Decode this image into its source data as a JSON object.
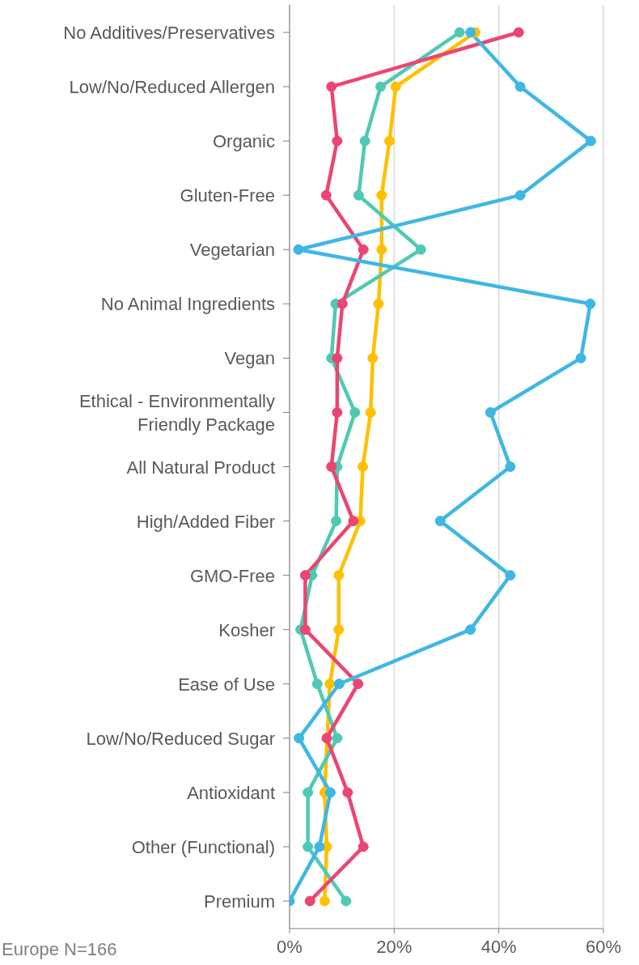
{
  "chart_data": {
    "type": "line",
    "orientation": "horizontal",
    "categories": [
      "No Additives/Preservatives",
      "Low/No/Reduced Allergen",
      "Organic",
      "Gluten-Free",
      "Vegetarian",
      "No Animal Ingredients",
      "Vegan",
      "Ethical - Environmentally Friendly Package",
      "All Natural Product",
      "High/Added Fiber",
      "GMO-Free",
      "Kosher",
      "Ease of Use",
      "Low/No/Reduced Sugar",
      "Antioxidant",
      "Other (Functional)",
      "Premium"
    ],
    "series": [
      {
        "color": "#ffc000",
        "values": [
          35.5,
          20.3,
          19.1,
          17.6,
          17.6,
          17.0,
          15.9,
          15.5,
          14.0,
          13.5,
          9.4,
          9.4,
          7.7,
          null,
          6.7,
          7.1,
          6.7
        ]
      },
      {
        "color": "#4fc9b4",
        "values": [
          32.5,
          17.4,
          14.4,
          13.2,
          25.1,
          8.8,
          8.0,
          12.5,
          9.1,
          8.9,
          4.3,
          2.1,
          5.3,
          9.1,
          3.5,
          3.5,
          10.8
        ]
      },
      {
        "color": "#ec4571",
        "values": [
          43.8,
          8.0,
          9.1,
          7.0,
          14.1,
          10.1,
          9.1,
          9.1,
          8.0,
          12.2,
          3.0,
          3.0,
          13.1,
          7.1,
          11.1,
          14.1,
          3.9
        ]
      },
      {
        "color": "#3fb7e3",
        "values": [
          34.6,
          44.1,
          57.6,
          44.1,
          1.7,
          57.5,
          55.7,
          38.4,
          42.2,
          28.8,
          42.2,
          34.6,
          9.5,
          1.8,
          7.8,
          5.7,
          0
        ]
      }
    ],
    "xlim": [
      0,
      60
    ],
    "xticks": [
      {
        "value": 0,
        "label": "0%"
      },
      {
        "value": 20,
        "label": "20%"
      },
      {
        "value": 40,
        "label": "40%"
      },
      {
        "value": 60,
        "label": "60%"
      }
    ],
    "grid": "x",
    "marker": "circle",
    "line_style": "solid",
    "annotations": [
      "Europe N=166"
    ]
  }
}
